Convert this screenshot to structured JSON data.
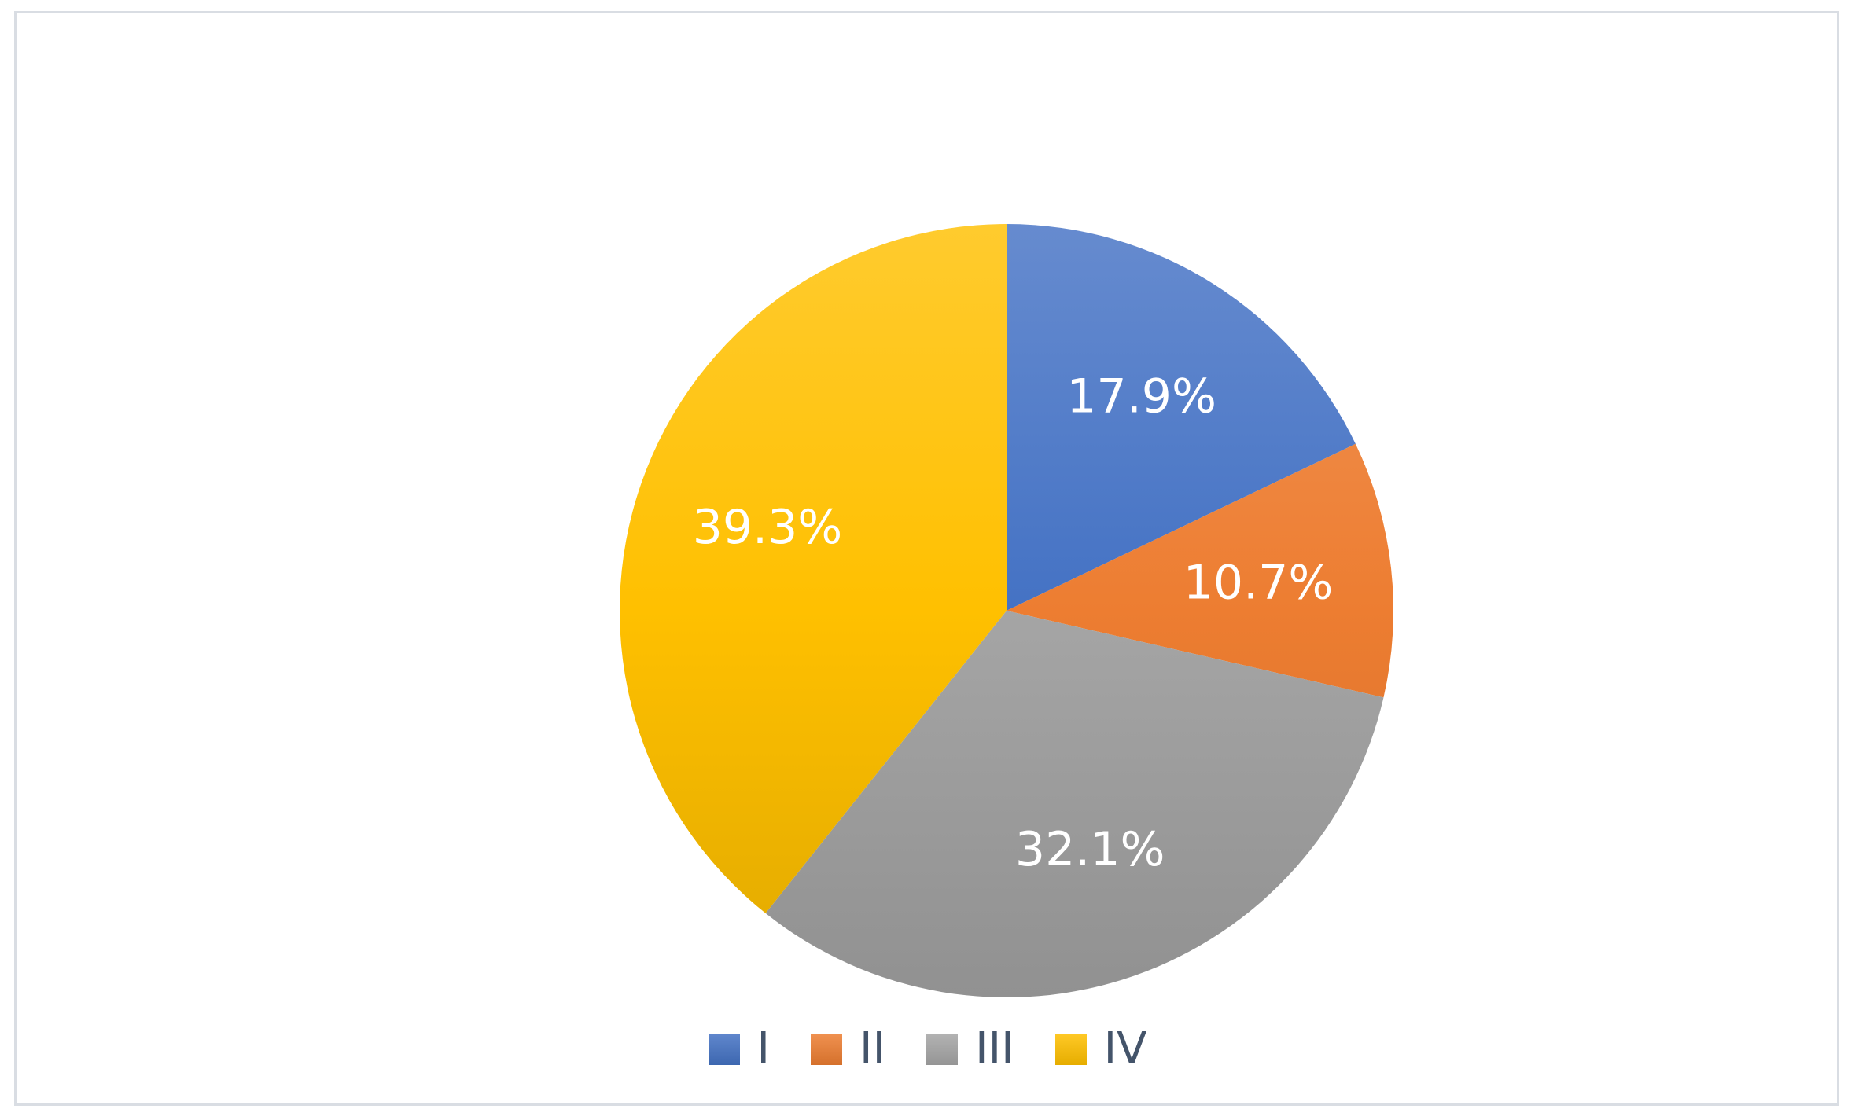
{
  "chart_data": {
    "type": "pie",
    "categories": [
      "I",
      "II",
      "III",
      "IV"
    ],
    "values": [
      17.9,
      10.7,
      32.1,
      39.3
    ],
    "data_labels": [
      "17.9%",
      "10.7%",
      "32.1%",
      "39.3%"
    ],
    "colors": [
      "#4472c4",
      "#ed7d31",
      "#a5a5a5",
      "#ffc000"
    ],
    "title": "",
    "legend_position": "bottom",
    "start_angle": "12 o'clock",
    "direction": "clockwise"
  }
}
